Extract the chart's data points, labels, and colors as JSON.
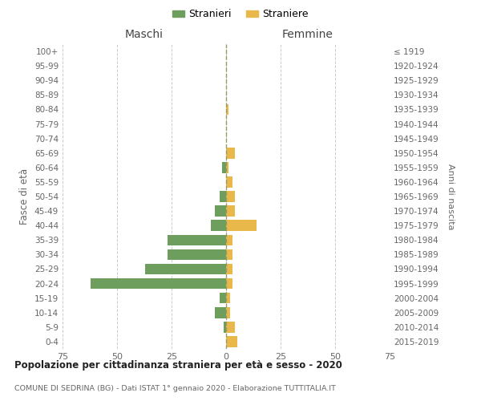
{
  "age_groups": [
    "0-4",
    "5-9",
    "10-14",
    "15-19",
    "20-24",
    "25-29",
    "30-34",
    "35-39",
    "40-44",
    "45-49",
    "50-54",
    "55-59",
    "60-64",
    "65-69",
    "70-74",
    "75-79",
    "80-84",
    "85-89",
    "90-94",
    "95-99",
    "100+"
  ],
  "birth_years": [
    "2015-2019",
    "2010-2014",
    "2005-2009",
    "2000-2004",
    "1995-1999",
    "1990-1994",
    "1985-1989",
    "1980-1984",
    "1975-1979",
    "1970-1974",
    "1965-1969",
    "1960-1964",
    "1955-1959",
    "1950-1954",
    "1945-1949",
    "1940-1944",
    "1935-1939",
    "1930-1934",
    "1925-1929",
    "1920-1924",
    "≤ 1919"
  ],
  "males": [
    0,
    1,
    5,
    3,
    62,
    37,
    27,
    27,
    7,
    5,
    3,
    0,
    2,
    0,
    0,
    0,
    0,
    0,
    0,
    0,
    0
  ],
  "females": [
    5,
    4,
    2,
    2,
    3,
    3,
    3,
    3,
    14,
    4,
    4,
    3,
    1,
    4,
    0,
    0,
    1,
    0,
    0,
    0,
    0
  ],
  "male_color": "#6d9e5e",
  "female_color": "#e8b84b",
  "male_label": "Stranieri",
  "female_label": "Straniere",
  "title": "Popolazione per cittadinanza straniera per età e sesso - 2020",
  "subtitle": "COMUNE DI SEDRINA (BG) - Dati ISTAT 1° gennaio 2020 - Elaborazione TUTTITALIA.IT",
  "ylabel_left": "Fasce di età",
  "ylabel_right": "Anni di nascita",
  "xlabel_maschi": "Maschi",
  "xlabel_femmine": "Femmine",
  "xlim": 75,
  "background_color": "#ffffff",
  "grid_color": "#cccccc"
}
